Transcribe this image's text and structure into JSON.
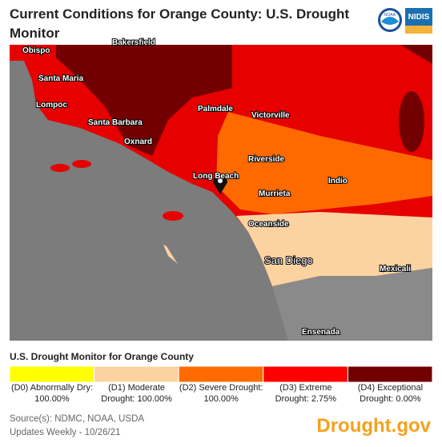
{
  "header": {
    "title": "Current Conditions for Orange County: U.S. Drought Monitor",
    "logos": [
      "NOAA",
      "NIDIS"
    ]
  },
  "map": {
    "labels": [
      "Obispo",
      "Bakersfield",
      "Santa Maria",
      "Lompoc",
      "Santa Barbara",
      "Oxnard",
      "Palmdale",
      "Victorville",
      "Riverside",
      "Long Beach",
      "Indio",
      "Murrieta",
      "Oceanside",
      "San Diego",
      "Mexicali",
      "Ensenada"
    ]
  },
  "legend": {
    "title": "U.S. Drought Monitor for Orange County",
    "items": [
      {
        "label": "(D0) Abnormally Dry: 100.00%",
        "color": "#ffff00"
      },
      {
        "label": "(D1) Moderate Drought: 100.00%",
        "color": "#fcd3a0"
      },
      {
        "label": "(D2) Severe Drought: 100.00%",
        "color": "#ff6a00"
      },
      {
        "label": "(D3) Extreme Drought: 2.75%",
        "color": "#ff0000"
      },
      {
        "label": "(D4) Exceptional Drought: 0.00%",
        "color": "#730000"
      }
    ]
  },
  "footer": {
    "source": "Source(s): NDMC, NOAA, USDA",
    "updated": "Updates Weekly - 10/26/21",
    "brand": "Drought.gov"
  }
}
